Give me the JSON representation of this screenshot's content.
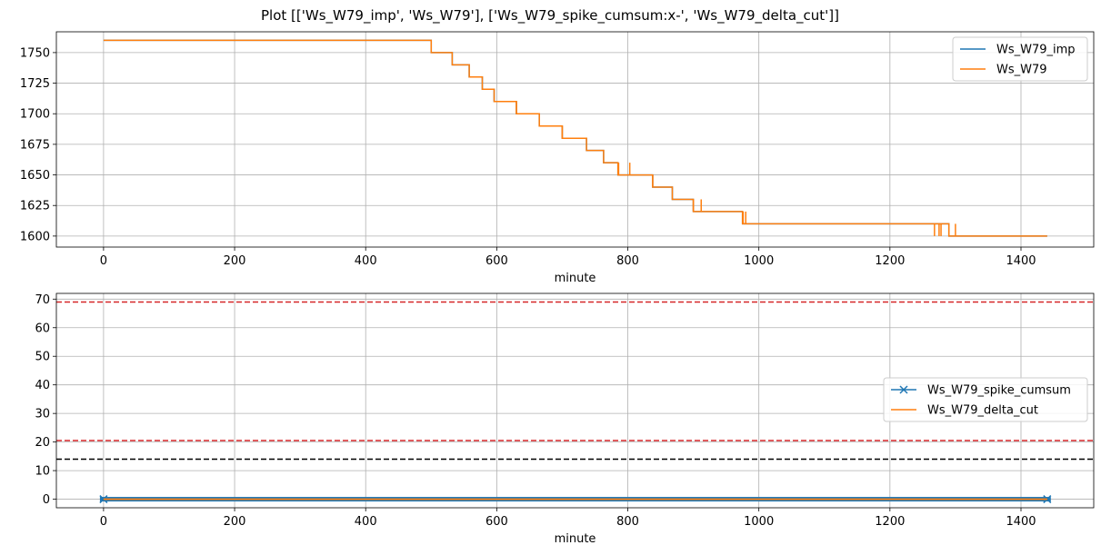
{
  "title": "Plot [['Ws_W79_imp', 'Ws_W79'], ['Ws_W79_spike_cumsum:x-', 'Ws_W79_delta_cut']]",
  "colors": {
    "blue": "#1f77b4",
    "orange": "#ff7f0e",
    "red": "#d62728",
    "black": "#000000",
    "grid": "#b0b0b0"
  },
  "chart_data": [
    {
      "type": "line",
      "xlabel": "minute",
      "ylabel": "",
      "xlim": [
        -72,
        1511
      ],
      "ylim": [
        1591,
        1767
      ],
      "xticks": [
        0,
        200,
        400,
        600,
        800,
        1000,
        1200,
        1400
      ],
      "yticks": [
        1600,
        1625,
        1650,
        1675,
        1700,
        1725,
        1750
      ],
      "grid": true,
      "legend_position": "upper right",
      "series": [
        {
          "name": "Ws_W79_imp",
          "color": "#1f77b4",
          "style": "step",
          "x": [
            0,
            500,
            532,
            558,
            578,
            596,
            630,
            665,
            700,
            737,
            763,
            785,
            838,
            868,
            900,
            975,
            1290,
            1440
          ],
          "y": [
            1760,
            1750,
            1740,
            1730,
            1720,
            1710,
            1700,
            1690,
            1680,
            1670,
            1660,
            1650,
            1640,
            1630,
            1620,
            1610,
            1600,
            1600
          ]
        },
        {
          "name": "Ws_W79",
          "color": "#ff7f0e",
          "style": "step",
          "x": [
            0,
            500,
            532,
            558,
            578,
            596,
            630,
            665,
            700,
            737,
            763,
            785,
            838,
            868,
            900,
            975,
            1290,
            1440
          ],
          "y": [
            1760,
            1750,
            1740,
            1730,
            1720,
            1710,
            1700,
            1690,
            1680,
            1670,
            1660,
            1650,
            1640,
            1630,
            1620,
            1610,
            1600,
            1600
          ],
          "spikes": [
            {
              "x": 532,
              "to": 1740
            },
            {
              "x": 580,
              "to": 1720
            },
            {
              "x": 598,
              "to": 1710
            },
            {
              "x": 630,
              "to": 1710
            },
            {
              "x": 665,
              "to": 1690
            },
            {
              "x": 700,
              "to": 1690
            },
            {
              "x": 702,
              "to": 1680
            },
            {
              "x": 765,
              "to": 1660
            },
            {
              "x": 786,
              "to": 1660
            },
            {
              "x": 803,
              "to": 1660
            },
            {
              "x": 838,
              "to": 1650
            },
            {
              "x": 840,
              "to": 1640
            },
            {
              "x": 900,
              "to": 1630
            },
            {
              "x": 912,
              "to": 1630
            },
            {
              "x": 972,
              "to": 1620
            },
            {
              "x": 976,
              "to": 1620
            },
            {
              "x": 980,
              "to": 1620
            },
            {
              "x": 1268,
              "to": 1600
            },
            {
              "x": 1275,
              "to": 1600
            },
            {
              "x": 1278,
              "to": 1600
            },
            {
              "x": 1282,
              "to": 1610
            },
            {
              "x": 1292,
              "to": 1600
            },
            {
              "x": 1300,
              "to": 1610
            }
          ]
        }
      ]
    },
    {
      "type": "line",
      "xlabel": "minute",
      "ylabel": "",
      "xlim": [
        -72,
        1511
      ],
      "ylim": [
        -3,
        72
      ],
      "xticks": [
        0,
        200,
        400,
        600,
        800,
        1000,
        1200,
        1400
      ],
      "yticks": [
        0,
        10,
        20,
        30,
        40,
        50,
        60,
        70
      ],
      "grid": true,
      "legend_position": "center right",
      "series": [
        {
          "name": "Ws_W79_spike_cumsum",
          "color": "#1f77b4",
          "marker": "x",
          "x": [
            0,
            1440
          ],
          "y": [
            0,
            0
          ]
        },
        {
          "name": "Ws_W79_delta_cut",
          "color": "#ff7f0e",
          "x": [
            0,
            1440
          ],
          "y": [
            0,
            0
          ]
        }
      ],
      "hlines": [
        {
          "y": 69,
          "color": "#d62728",
          "style": "dashed"
        },
        {
          "y": 20.5,
          "color": "#d62728",
          "style": "dashed"
        },
        {
          "y": 14,
          "color": "#000000",
          "style": "dashed"
        }
      ]
    }
  ]
}
